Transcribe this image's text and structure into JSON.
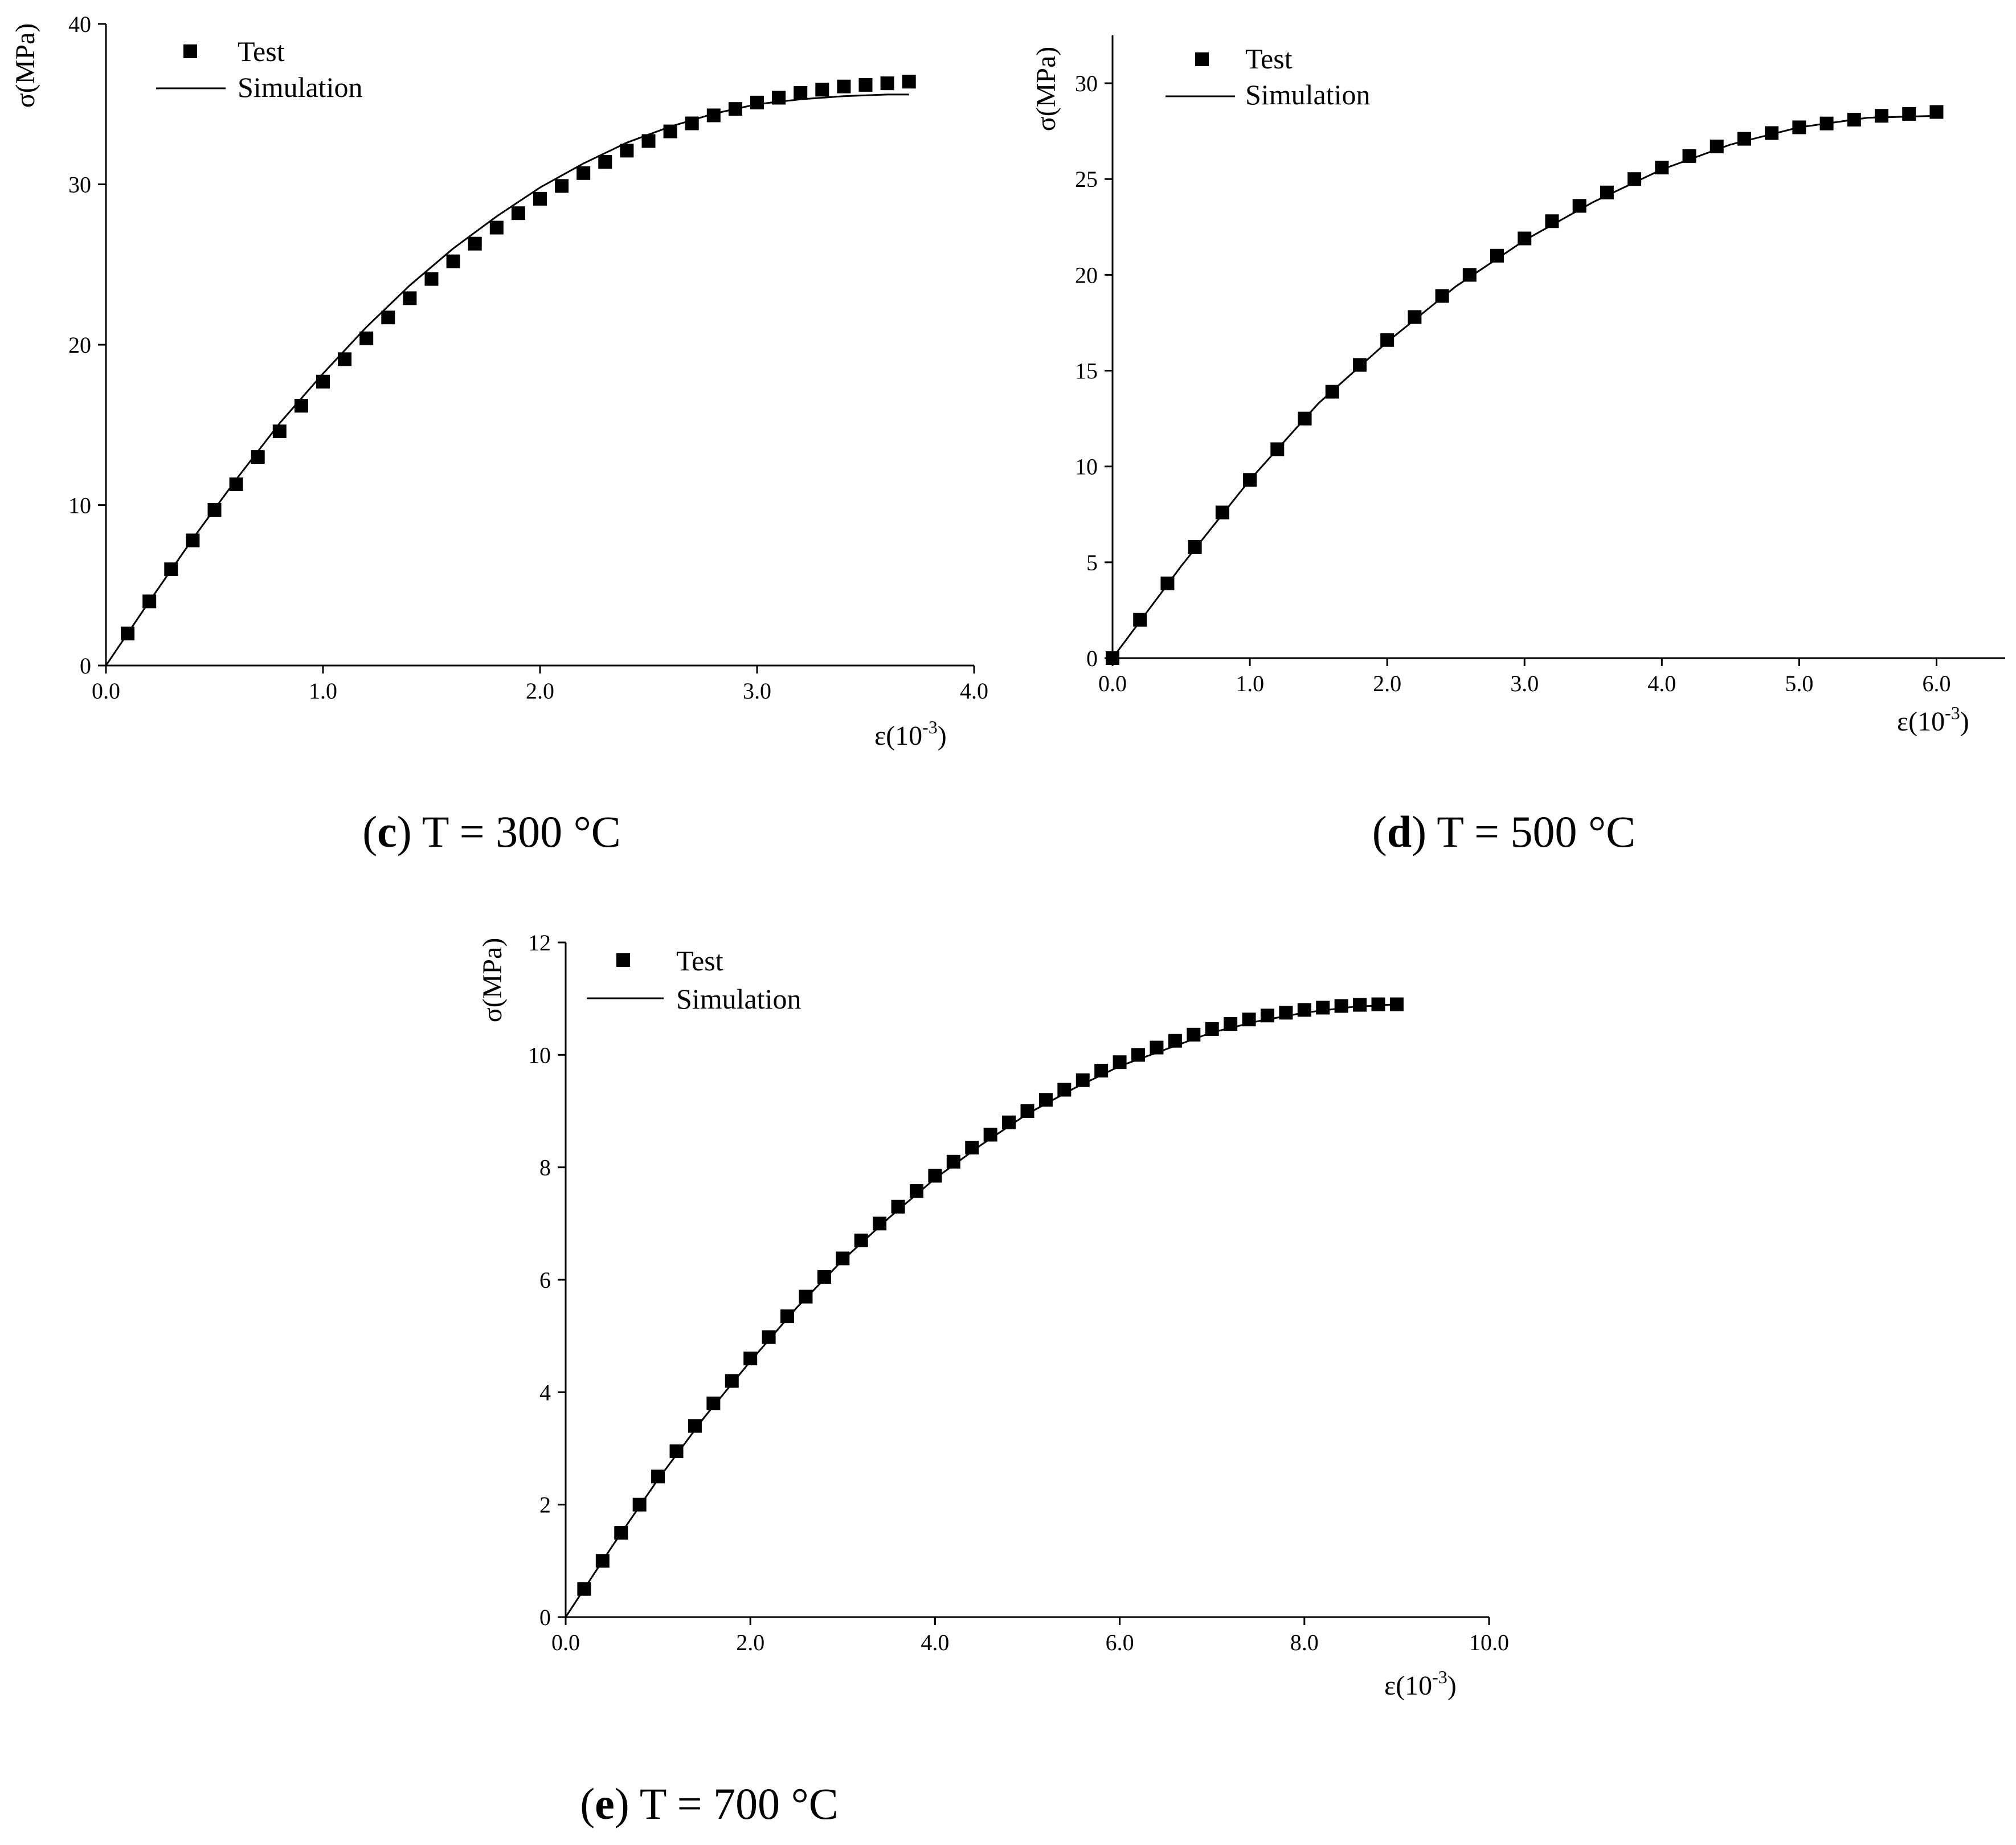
{
  "chart_data": [
    {
      "id": "c",
      "type": "scatter",
      "caption": {
        "letter": "c",
        "text": "T = 300 °C"
      },
      "xlabel": "ε(10",
      "xlabel_sup": "-3",
      "xlabel_close": ")",
      "ylabel": "σ(MPa)",
      "xlim": [
        0,
        4.0
      ],
      "ylim": [
        0,
        40
      ],
      "xticks": [
        0,
        1,
        2,
        3,
        4
      ],
      "xtick_labels": [
        "0.0",
        "1.0",
        "2.0",
        "3.0",
        "4.0"
      ],
      "yticks": [
        0,
        10,
        20,
        30,
        40
      ],
      "ytick_labels": [
        "0",
        "10",
        "20",
        "30",
        "40"
      ],
      "legend": {
        "test": "Test",
        "simulation": "Simulation"
      },
      "series": [
        {
          "name": "Test",
          "x": [
            0.1,
            0.2,
            0.3,
            0.4,
            0.5,
            0.6,
            0.7,
            0.8,
            0.9,
            1.0,
            1.1,
            1.2,
            1.3,
            1.4,
            1.5,
            1.6,
            1.7,
            1.8,
            1.9,
            2.0,
            2.1,
            2.2,
            2.3,
            2.4,
            2.5,
            2.6,
            2.7,
            2.8,
            2.9,
            3.0,
            3.1,
            3.2,
            3.3,
            3.4,
            3.5,
            3.6,
            3.7
          ],
          "y": [
            2.0,
            4.0,
            6.0,
            7.8,
            9.7,
            11.3,
            13.0,
            14.6,
            16.2,
            17.7,
            19.1,
            20.4,
            21.7,
            22.9,
            24.1,
            25.2,
            26.3,
            27.3,
            28.2,
            29.1,
            29.9,
            30.7,
            31.4,
            32.1,
            32.7,
            33.3,
            33.8,
            34.3,
            34.7,
            35.1,
            35.4,
            35.7,
            35.9,
            36.1,
            36.2,
            36.3,
            36.4
          ]
        },
        {
          "name": "Simulation",
          "x": [
            0,
            0.2,
            0.4,
            0.6,
            0.8,
            1.0,
            1.2,
            1.4,
            1.6,
            1.8,
            2.0,
            2.2,
            2.4,
            2.6,
            2.8,
            3.0,
            3.2,
            3.4,
            3.6,
            3.7
          ],
          "y": [
            0,
            4.0,
            7.9,
            11.6,
            15.1,
            18.2,
            21.1,
            23.7,
            26.0,
            28.0,
            29.8,
            31.3,
            32.6,
            33.6,
            34.4,
            35.0,
            35.3,
            35.5,
            35.6,
            35.6
          ]
        }
      ]
    },
    {
      "id": "d",
      "type": "scatter",
      "caption": {
        "letter": "d",
        "text": "T = 500 °C"
      },
      "xlabel": "ε(10",
      "xlabel_sup": "-3",
      "xlabel_close": ")",
      "ylabel": "σ(MPa)",
      "xlim": [
        0,
        6.5
      ],
      "ylim": [
        0,
        32.5
      ],
      "xticks": [
        0,
        1,
        2,
        3,
        4,
        5,
        6
      ],
      "xtick_labels": [
        "0.0",
        "1.0",
        "2.0",
        "3.0",
        "4.0",
        "5.0",
        "6.0"
      ],
      "yticks": [
        0,
        5,
        10,
        15,
        20,
        25,
        30
      ],
      "ytick_labels": [
        "0",
        "5",
        "10",
        "15",
        "20",
        "25",
        "30"
      ],
      "legend": {
        "test": "Test",
        "simulation": "Simulation"
      },
      "series": [
        {
          "name": "Test",
          "x": [
            0,
            0.2,
            0.4,
            0.6,
            0.8,
            1.0,
            1.2,
            1.4,
            1.6,
            1.8,
            2.0,
            2.2,
            2.4,
            2.6,
            2.8,
            3.0,
            3.2,
            3.4,
            3.6,
            3.8,
            4.0,
            4.2,
            4.4,
            4.6,
            4.8,
            5.0,
            5.2,
            5.4,
            5.6,
            5.8,
            6.0
          ],
          "y": [
            0,
            2.0,
            3.9,
            5.8,
            7.6,
            9.3,
            10.9,
            12.5,
            13.9,
            15.3,
            16.6,
            17.8,
            18.9,
            20.0,
            21.0,
            21.9,
            22.8,
            23.6,
            24.3,
            25.0,
            25.6,
            26.2,
            26.7,
            27.1,
            27.4,
            27.7,
            27.9,
            28.1,
            28.3,
            28.4,
            28.5
          ]
        },
        {
          "name": "Simulation",
          "x": [
            0,
            0.5,
            1.0,
            1.5,
            2.0,
            2.5,
            3.0,
            3.5,
            4.0,
            4.5,
            5.0,
            5.5,
            6.0
          ],
          "y": [
            0,
            4.8,
            9.3,
            13.3,
            16.5,
            19.4,
            21.8,
            23.8,
            25.5,
            26.8,
            27.7,
            28.2,
            28.3
          ]
        }
      ]
    },
    {
      "id": "e",
      "type": "scatter",
      "caption": {
        "letter": "e",
        "text": "T = 700 °C"
      },
      "xlabel": "ε(10",
      "xlabel_sup": "-3",
      "xlabel_close": ")",
      "ylabel": "σ(MPa)",
      "xlim": [
        0,
        10.0
      ],
      "ylim": [
        0,
        12
      ],
      "xticks": [
        0,
        2,
        4,
        6,
        8,
        10
      ],
      "xtick_labels": [
        "0.0",
        "2.0",
        "4.0",
        "6.0",
        "8.0",
        "10.0"
      ],
      "yticks": [
        0,
        2,
        4,
        6,
        8,
        10,
        12
      ],
      "ytick_labels": [
        "0",
        "2",
        "4",
        "6",
        "8",
        "10",
        "12"
      ],
      "legend": {
        "test": "Test",
        "simulation": "Simulation"
      },
      "series": [
        {
          "name": "Test",
          "x": [
            0.2,
            0.4,
            0.6,
            0.8,
            1.0,
            1.2,
            1.4,
            1.6,
            1.8,
            2.0,
            2.2,
            2.4,
            2.6,
            2.8,
            3.0,
            3.2,
            3.4,
            3.6,
            3.8,
            4.0,
            4.2,
            4.4,
            4.6,
            4.8,
            5.0,
            5.2,
            5.4,
            5.6,
            5.8,
            6.0,
            6.2,
            6.4,
            6.6,
            6.8,
            7.0,
            7.2,
            7.4,
            7.6,
            7.8,
            8.0,
            8.2,
            8.4,
            8.6,
            8.8,
            9.0
          ],
          "y": [
            0.5,
            1.0,
            1.5,
            2.0,
            2.5,
            2.95,
            3.4,
            3.8,
            4.2,
            4.6,
            4.98,
            5.35,
            5.7,
            6.05,
            6.38,
            6.7,
            7.0,
            7.3,
            7.58,
            7.85,
            8.1,
            8.35,
            8.58,
            8.8,
            9.0,
            9.2,
            9.38,
            9.55,
            9.72,
            9.87,
            10.0,
            10.13,
            10.25,
            10.36,
            10.46,
            10.55,
            10.63,
            10.7,
            10.75,
            10.8,
            10.84,
            10.87,
            10.89,
            10.9,
            10.9
          ]
        },
        {
          "name": "Simulation",
          "x": [
            0,
            0.5,
            1.0,
            1.5,
            2.0,
            2.5,
            3.0,
            3.5,
            4.0,
            4.5,
            5.0,
            5.5,
            6.0,
            6.5,
            7.0,
            7.5,
            8.0,
            8.5,
            9.0
          ],
          "y": [
            0,
            1.25,
            2.45,
            3.55,
            4.55,
            5.5,
            6.35,
            7.1,
            7.8,
            8.4,
            8.95,
            9.4,
            9.8,
            10.1,
            10.4,
            10.6,
            10.75,
            10.85,
            10.9
          ]
        }
      ]
    }
  ]
}
